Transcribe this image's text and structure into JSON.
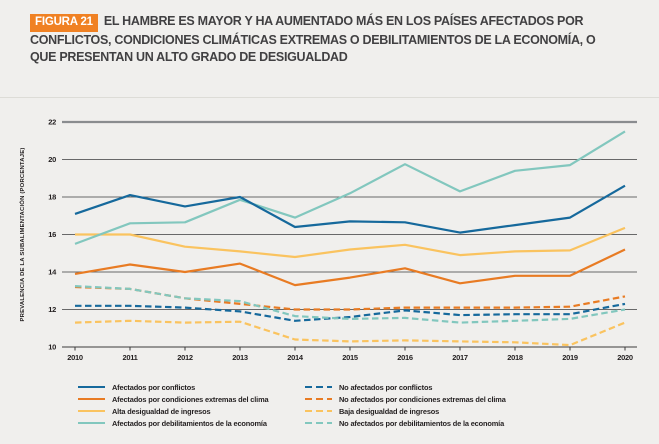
{
  "figure": {
    "badge": "FIGURA 21",
    "title": "EL HAMBRE ES MAYOR Y HA AUMENTADO MÁS EN LOS PAÍSES AFECTADOS POR CONFLICTOS, CONDICIONES CLIMÁTICAS EXTREMAS O DEBILITAMIENTOS DE LA ECONOMÍA, O QUE PRESENTAN UN ALTO GRADO DE DESIGUALDAD"
  },
  "colors": {
    "badge_orange": "#f08123",
    "background": "#f0efed",
    "title_text": "#414042",
    "grid_line": "#3b3b3c",
    "grid_top_line": "#8a8c8f",
    "tick_text": "#231f20",
    "conflict_blue": "#16699c",
    "climate_orange": "#e87b23",
    "inequality_yellow": "#fac35f",
    "economy_teal": "#82c7be"
  },
  "chart_data": {
    "type": "line",
    "x": [
      2010,
      2011,
      2012,
      2013,
      2014,
      2015,
      2016,
      2017,
      2018,
      2019,
      2020
    ],
    "xlabel": "",
    "ylabel": "PREVALENCIA DE LA SUBALIMENTACIÓN (PORCENTAJE)",
    "ylim": [
      10,
      22
    ],
    "ytick_step": 2,
    "grid": "horizontal",
    "legend_position": "bottom",
    "draw_order": [
      2,
      1,
      3,
      0,
      6,
      4,
      5,
      7
    ],
    "series": [
      {
        "name": "Afectados por conflictos",
        "color": "#16699c",
        "dashed": false,
        "values": [
          17.1,
          18.1,
          17.5,
          18.0,
          16.4,
          16.7,
          16.65,
          16.1,
          16.5,
          16.9,
          18.6
        ]
      },
      {
        "name": "Afectados por condiciones extremas del clima",
        "color": "#e87b23",
        "dashed": false,
        "values": [
          13.9,
          14.4,
          14.0,
          14.45,
          13.3,
          13.7,
          14.2,
          13.4,
          13.8,
          13.8,
          15.2
        ]
      },
      {
        "name": "Alta desigualdad de ingresos",
        "color": "#fac35f",
        "dashed": false,
        "values": [
          16.0,
          16.0,
          15.35,
          15.1,
          14.8,
          15.2,
          15.45,
          14.9,
          15.1,
          15.15,
          16.35
        ]
      },
      {
        "name": "Afectados por debilitamientos de la economía",
        "color": "#82c7be",
        "dashed": false,
        "values": [
          15.5,
          16.6,
          16.65,
          17.85,
          16.9,
          18.2,
          19.75,
          18.3,
          19.4,
          19.7,
          21.5
        ]
      },
      {
        "name": "No afectados por conflictos",
        "color": "#16699c",
        "dashed": true,
        "values": [
          12.2,
          12.2,
          12.1,
          11.9,
          11.4,
          11.6,
          11.95,
          11.7,
          11.75,
          11.75,
          12.3
        ]
      },
      {
        "name": "No afectados por condiciones extremas del clima",
        "color": "#e87b23",
        "dashed": true,
        "values": [
          13.2,
          13.1,
          12.6,
          12.3,
          12.0,
          12.0,
          12.1,
          12.1,
          12.1,
          12.15,
          12.7
        ]
      },
      {
        "name": "Baja desigualdad de ingresos",
        "color": "#fac35f",
        "dashed": true,
        "values": [
          11.3,
          11.4,
          11.3,
          11.35,
          10.4,
          10.3,
          10.35,
          10.3,
          10.25,
          10.1,
          11.3
        ]
      },
      {
        "name": "No afectados por debilitamientos de la economía",
        "color": "#82c7be",
        "dashed": true,
        "values": [
          13.25,
          13.1,
          12.6,
          12.45,
          11.65,
          11.5,
          11.55,
          11.3,
          11.4,
          11.5,
          12.0
        ]
      }
    ]
  }
}
